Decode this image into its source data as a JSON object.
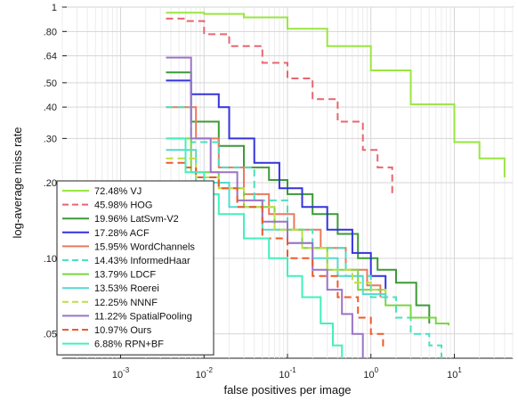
{
  "chart_data": {
    "type": "line",
    "title": "",
    "xlabel": "false positives per image",
    "ylabel": "log-average miss rate",
    "x_scale": "log",
    "y_scale": "log",
    "xlim": [
      0.0002,
      50
    ],
    "ylim": [
      0.04,
      1
    ],
    "x_ticks": [
      {
        "value": 0.001,
        "label": "10^-3"
      },
      {
        "value": 0.01,
        "label": "10^-2"
      },
      {
        "value": 0.1,
        "label": "10^-1"
      },
      {
        "value": 1,
        "label": "10^0"
      },
      {
        "value": 10,
        "label": "10^1"
      }
    ],
    "y_ticks": [
      {
        "value": 1,
        "label": "1"
      },
      {
        "value": 0.8,
        "label": ".80"
      },
      {
        "value": 0.64,
        "label": ".64"
      },
      {
        "value": 0.5,
        "label": ".50"
      },
      {
        "value": 0.4,
        "label": ".40"
      },
      {
        "value": 0.3,
        "label": ".30"
      },
      {
        "value": 0.2,
        "label": ".20"
      },
      {
        "value": 0.1,
        "label": ".10"
      },
      {
        "value": 0.05,
        "label": ".05"
      }
    ],
    "grid": true,
    "legend_position": "bottom-left",
    "series": [
      {
        "name": "72.48% VJ",
        "color": "#99e640",
        "dash": false,
        "points": [
          [
            0.0035,
            0.95
          ],
          [
            0.01,
            0.94
          ],
          [
            0.03,
            0.91
          ],
          [
            0.1,
            0.82
          ],
          [
            0.3,
            0.7
          ],
          [
            1,
            0.56
          ],
          [
            3,
            0.41
          ],
          [
            10,
            0.29
          ],
          [
            20,
            0.25
          ],
          [
            40,
            0.21
          ]
        ]
      },
      {
        "name": "45.98% HOG",
        "color": "#e8666f",
        "dash": true,
        "points": [
          [
            0.0035,
            0.9
          ],
          [
            0.006,
            0.88
          ],
          [
            0.01,
            0.78
          ],
          [
            0.02,
            0.7
          ],
          [
            0.05,
            0.6
          ],
          [
            0.1,
            0.52
          ],
          [
            0.2,
            0.43
          ],
          [
            0.4,
            0.35
          ],
          [
            0.8,
            0.27
          ],
          [
            1.2,
            0.23
          ],
          [
            1.8,
            0.18
          ]
        ]
      },
      {
        "name": "19.96% LatSvm-V2",
        "color": "#3c9a36",
        "dash": false,
        "points": [
          [
            0.0035,
            0.55
          ],
          [
            0.007,
            0.35
          ],
          [
            0.015,
            0.28
          ],
          [
            0.03,
            0.23
          ],
          [
            0.06,
            0.205
          ],
          [
            0.1,
            0.18
          ],
          [
            0.2,
            0.15
          ],
          [
            0.4,
            0.125
          ],
          [
            0.7,
            0.1
          ],
          [
            1.2,
            0.09
          ],
          [
            2,
            0.08
          ],
          [
            3.5,
            0.065
          ],
          [
            5,
            0.055
          ]
        ]
      },
      {
        "name": "17.28% ACF",
        "color": "#3333dd",
        "dash": false,
        "points": [
          [
            0.0035,
            0.51
          ],
          [
            0.007,
            0.45
          ],
          [
            0.015,
            0.4
          ],
          [
            0.02,
            0.3
          ],
          [
            0.04,
            0.24
          ],
          [
            0.08,
            0.19
          ],
          [
            0.15,
            0.16
          ],
          [
            0.3,
            0.13
          ],
          [
            0.6,
            0.105
          ],
          [
            1,
            0.085
          ],
          [
            1.5,
            0.075
          ]
        ]
      },
      {
        "name": "15.95% WordChannels",
        "color": "#e87a5e",
        "dash": false,
        "points": [
          [
            0.0035,
            0.4
          ],
          [
            0.008,
            0.3
          ],
          [
            0.015,
            0.23
          ],
          [
            0.03,
            0.18
          ],
          [
            0.06,
            0.15
          ],
          [
            0.12,
            0.13
          ],
          [
            0.25,
            0.11
          ],
          [
            0.5,
            0.09
          ],
          [
            0.9,
            0.078
          ],
          [
            1.3,
            0.07
          ]
        ]
      },
      {
        "name": "14.43% InformedHaar",
        "color": "#49e0c0",
        "dash": true,
        "points": [
          [
            0.0035,
            0.4
          ],
          [
            0.007,
            0.29
          ],
          [
            0.015,
            0.23
          ],
          [
            0.04,
            0.17
          ],
          [
            0.1,
            0.13
          ],
          [
            0.2,
            0.11
          ],
          [
            0.5,
            0.085
          ],
          [
            1,
            0.07
          ],
          [
            2,
            0.058
          ],
          [
            3,
            0.05
          ],
          [
            5,
            0.045
          ],
          [
            7,
            0.04
          ]
        ]
      },
      {
        "name": "13.79% LDCF",
        "color": "#7bd641",
        "dash": false,
        "points": [
          [
            0.0035,
            0.3
          ],
          [
            0.007,
            0.22
          ],
          [
            0.015,
            0.19
          ],
          [
            0.03,
            0.16
          ],
          [
            0.07,
            0.13
          ],
          [
            0.15,
            0.11
          ],
          [
            0.3,
            0.09
          ],
          [
            0.7,
            0.075
          ],
          [
            1.5,
            0.065
          ],
          [
            3,
            0.058
          ],
          [
            6,
            0.055
          ],
          [
            8.5,
            0.054
          ]
        ]
      },
      {
        "name": "13.53% Roerei",
        "color": "#55d9cf",
        "dash": false,
        "points": [
          [
            0.0035,
            0.27
          ],
          [
            0.008,
            0.2
          ],
          [
            0.02,
            0.16
          ],
          [
            0.05,
            0.13
          ],
          [
            0.1,
            0.115
          ],
          [
            0.2,
            0.1
          ],
          [
            0.4,
            0.085
          ],
          [
            0.8,
            0.072
          ],
          [
            1.5,
            0.068
          ]
        ]
      },
      {
        "name": "12.25% NNNF",
        "color": "#c2dc46",
        "dash": true,
        "points": [
          [
            0.0035,
            0.25
          ],
          [
            0.008,
            0.21
          ],
          [
            0.015,
            0.19
          ],
          [
            0.03,
            0.16
          ],
          [
            0.07,
            0.13
          ],
          [
            0.15,
            0.11
          ],
          [
            0.3,
            0.09
          ],
          [
            0.6,
            0.08
          ],
          [
            1,
            0.075
          ],
          [
            1.5,
            0.07
          ]
        ]
      },
      {
        "name": "11.22% SpatialPooling",
        "color": "#9b73c7",
        "dash": false,
        "points": [
          [
            0.0035,
            0.63
          ],
          [
            0.007,
            0.3
          ],
          [
            0.012,
            0.22
          ],
          [
            0.025,
            0.17
          ],
          [
            0.05,
            0.14
          ],
          [
            0.1,
            0.115
          ],
          [
            0.2,
            0.09
          ],
          [
            0.3,
            0.075
          ],
          [
            0.45,
            0.06
          ],
          [
            0.6,
            0.05
          ],
          [
            0.8,
            0.04
          ]
        ]
      },
      {
        "name": "10.97% Ours",
        "color": "#ee5a2a",
        "dash": true,
        "points": [
          [
            0.0035,
            0.24
          ],
          [
            0.006,
            0.23
          ],
          [
            0.008,
            0.21
          ],
          [
            0.015,
            0.19
          ],
          [
            0.025,
            0.16
          ],
          [
            0.05,
            0.12
          ],
          [
            0.1,
            0.1
          ],
          [
            0.2,
            0.085
          ],
          [
            0.4,
            0.07
          ],
          [
            0.7,
            0.058
          ],
          [
            1,
            0.05
          ],
          [
            1.4,
            0.043
          ]
        ]
      },
      {
        "name": "6.88% RPN+BF",
        "color": "#42f0bc",
        "dash": false,
        "points": [
          [
            0.0035,
            0.3
          ],
          [
            0.006,
            0.22
          ],
          [
            0.01,
            0.18
          ],
          [
            0.015,
            0.15
          ],
          [
            0.03,
            0.12
          ],
          [
            0.06,
            0.1
          ],
          [
            0.1,
            0.085
          ],
          [
            0.15,
            0.07
          ],
          [
            0.25,
            0.055
          ],
          [
            0.35,
            0.045
          ],
          [
            0.45,
            0.04
          ]
        ]
      }
    ]
  }
}
